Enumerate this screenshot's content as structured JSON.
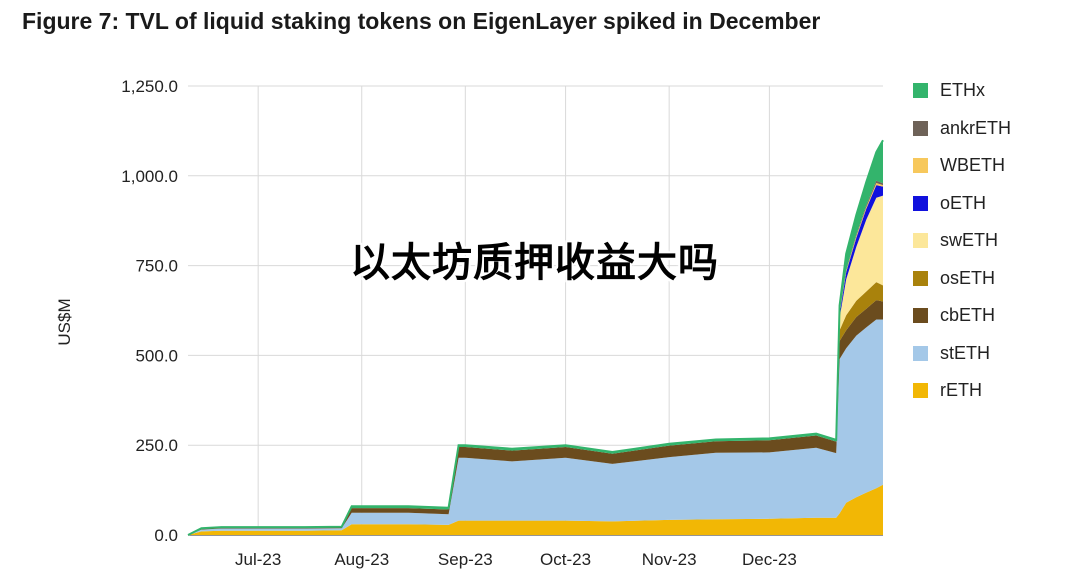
{
  "title": "Figure 7: TVL of liquid staking tokens on EigenLayer spiked in December",
  "overlay_text": "以太坊质押收益大吗",
  "chart_data": {
    "type": "area",
    "stacked": true,
    "ylabel": "US$M",
    "xlabel": "",
    "ylim": [
      0,
      1250
    ],
    "y_ticks": [
      "0.0",
      "250.0",
      "500.0",
      "750.0",
      "1,000.0",
      "1,250.0"
    ],
    "x_tick_labels": [
      "Jul-23",
      "Aug-23",
      "Sep-23",
      "Oct-23",
      "Nov-23",
      "Dec-23"
    ],
    "x_tick_dates": [
      "2023-07-01",
      "2023-08-01",
      "2023-09-01",
      "2023-10-01",
      "2023-11-01",
      "2023-12-01"
    ],
    "x_range": [
      "2023-06-10",
      "2024-01-04"
    ],
    "grid": true,
    "legend_position": "right",
    "dates": [
      "2023-06-10",
      "2023-06-14",
      "2023-06-20",
      "2023-07-01",
      "2023-07-15",
      "2023-07-26",
      "2023-07-29",
      "2023-08-01",
      "2023-08-15",
      "2023-08-27",
      "2023-08-30",
      "2023-09-01",
      "2023-09-15",
      "2023-10-01",
      "2023-10-15",
      "2023-11-01",
      "2023-11-15",
      "2023-12-01",
      "2023-12-15",
      "2023-12-21",
      "2023-12-22",
      "2023-12-24",
      "2023-12-27",
      "2023-12-30",
      "2024-01-02",
      "2024-01-04"
    ],
    "series": [
      {
        "name": "rETH",
        "color": "#f2b705",
        "values": [
          0,
          10,
          12,
          12,
          12,
          13,
          30,
          30,
          30,
          28,
          40,
          40,
          40,
          40,
          38,
          42,
          44,
          45,
          48,
          48,
          60,
          90,
          105,
          118,
          130,
          140
        ]
      },
      {
        "name": "stETH",
        "color": "#a4c8e8",
        "values": [
          0,
          5,
          6,
          6,
          6,
          6,
          32,
          32,
          32,
          30,
          175,
          175,
          165,
          175,
          160,
          175,
          185,
          185,
          195,
          180,
          430,
          430,
          450,
          460,
          470,
          460
        ]
      },
      {
        "name": "cbETH",
        "color": "#6b4c1e",
        "values": [
          0,
          3,
          3,
          3,
          3,
          3,
          13,
          13,
          13,
          13,
          30,
          30,
          30,
          30,
          28,
          32,
          32,
          34,
          34,
          32,
          50,
          50,
          52,
          52,
          54,
          50
        ]
      },
      {
        "name": "osETH",
        "color": "#a9820c",
        "values": [
          0,
          0,
          0,
          0,
          0,
          0,
          0,
          0,
          0,
          0,
          0,
          0,
          0,
          0,
          0,
          0,
          0,
          0,
          0,
          0,
          30,
          42,
          45,
          48,
          50,
          45
        ]
      },
      {
        "name": "swETH",
        "color": "#fce79a",
        "values": [
          0,
          0,
          0,
          0,
          0,
          0,
          0,
          0,
          0,
          0,
          0,
          0,
          0,
          0,
          0,
          0,
          0,
          0,
          0,
          0,
          35,
          100,
          150,
          200,
          235,
          250
        ]
      },
      {
        "name": "oETH",
        "color": "#1111dd",
        "values": [
          0,
          0,
          0,
          0,
          0,
          0,
          0,
          0,
          0,
          0,
          0,
          0,
          0,
          0,
          0,
          0,
          0,
          0,
          0,
          0,
          10,
          20,
          25,
          30,
          35,
          25
        ]
      },
      {
        "name": "WBETH",
        "color": "#f7c85c",
        "values": [
          0,
          0,
          0,
          0,
          0,
          0,
          0,
          0,
          0,
          0,
          0,
          0,
          0,
          0,
          0,
          0,
          0,
          0,
          0,
          0,
          2,
          3,
          5,
          5,
          6,
          4
        ]
      },
      {
        "name": "ankrETH",
        "color": "#6e6258",
        "values": [
          0,
          0,
          0,
          0,
          0,
          0,
          0,
          0,
          0,
          0,
          0,
          0,
          0,
          0,
          0,
          0,
          0,
          0,
          0,
          0,
          2,
          3,
          4,
          5,
          6,
          5
        ]
      },
      {
        "name": "ETHx",
        "color": "#33b46c",
        "values": [
          0,
          1,
          1,
          1,
          1,
          1,
          5,
          5,
          5,
          5,
          5,
          5,
          5,
          5,
          5,
          5,
          5,
          5,
          5,
          5,
          20,
          45,
          55,
          65,
          80,
          120
        ]
      }
    ]
  }
}
